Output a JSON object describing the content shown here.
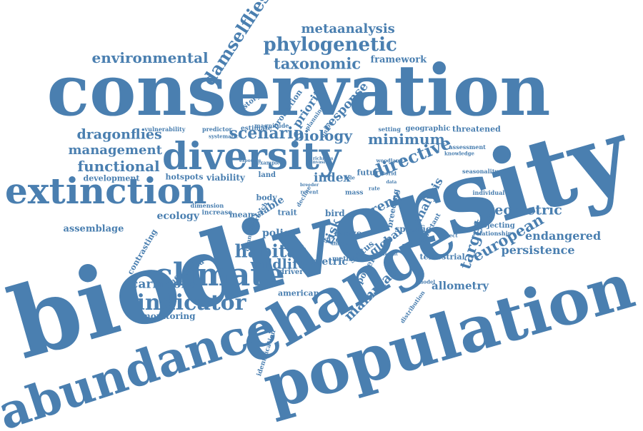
{
  "style": {
    "word_color": "#4a7fb0",
    "background": "#ffffff"
  },
  "words": [
    "conservation",
    "biodiversity",
    "population",
    "change",
    "abundance",
    "diversity",
    "extinction",
    "climate",
    "phylogenetic",
    "scenario",
    "habitat",
    "indicator",
    "damselflies",
    "metaanalysis",
    "taxonomic",
    "environmental",
    "framework",
    "dragonflies",
    "management",
    "functional",
    "biology",
    "minimum",
    "directive",
    "target",
    "geometric",
    "european",
    "endangered",
    "persistence",
    "allometry",
    "carnivore",
    "monitoring",
    "wildlife",
    "metric",
    "ecology",
    "assemblage",
    "trend",
    "index",
    "risk",
    "mammal",
    "analysis",
    "viability",
    "development",
    "history",
    "response",
    "priority",
    "protection",
    "specific",
    "global",
    "policy",
    "range",
    "viable",
    "mean",
    "bird",
    "trait",
    "body",
    "size",
    "american",
    "terrestrial",
    "status",
    "power",
    "driver",
    "future",
    "land",
    "threatened",
    "geographic",
    "setting",
    "hotspots",
    "influenced",
    "contrasting",
    "increase",
    "dimension",
    "identification",
    "distribution",
    "projecting",
    "relationship",
    "individual",
    "seasonality",
    "assessment",
    "knowledge",
    "estimate",
    "magnitude",
    "predictor",
    "vulnerability",
    "systematic",
    "planning",
    "union",
    "approach",
    "decline",
    "quantitative",
    "mass",
    "breeding",
    "method",
    "important",
    "different",
    "exposure",
    "example",
    "recent",
    "import",
    "world",
    "richness",
    "woodland",
    "model",
    "invasive",
    "insect",
    "rate",
    "role",
    "data",
    "breeder"
  ]
}
